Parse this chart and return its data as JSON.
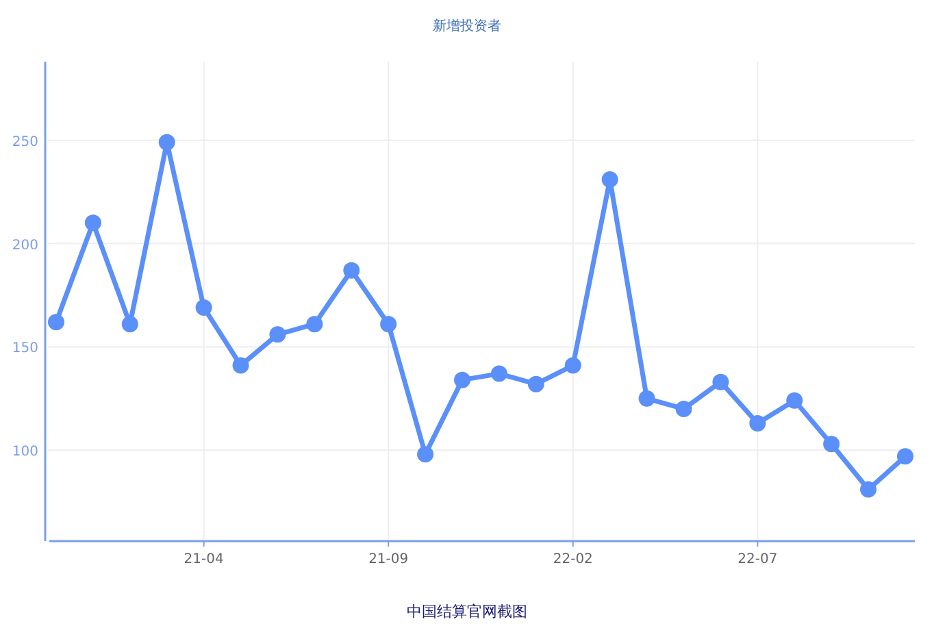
{
  "chart_data": {
    "type": "line",
    "title": "新增投资者",
    "categories": [
      null,
      null,
      null,
      null,
      "21-04",
      null,
      null,
      null,
      null,
      "21-09",
      null,
      null,
      null,
      null,
      "22-02",
      null,
      null,
      null,
      null,
      "22-07",
      null,
      null,
      null,
      null
    ],
    "series": [
      {
        "color": "#5b8ff9",
        "values": [
          162,
          210,
          161,
          249,
          169,
          141,
          156,
          161,
          187,
          161,
          98,
          134,
          137,
          132,
          141,
          231,
          125,
          120,
          133,
          113,
          124,
          103,
          81,
          97
        ]
      }
    ],
    "ylim": [
      56,
      288
    ],
    "yticks": [
      100,
      150,
      200,
      250
    ],
    "grid": true,
    "marker": "circle",
    "line_style": "solid",
    "annotations": [
      "中国结算官网截图"
    ]
  }
}
